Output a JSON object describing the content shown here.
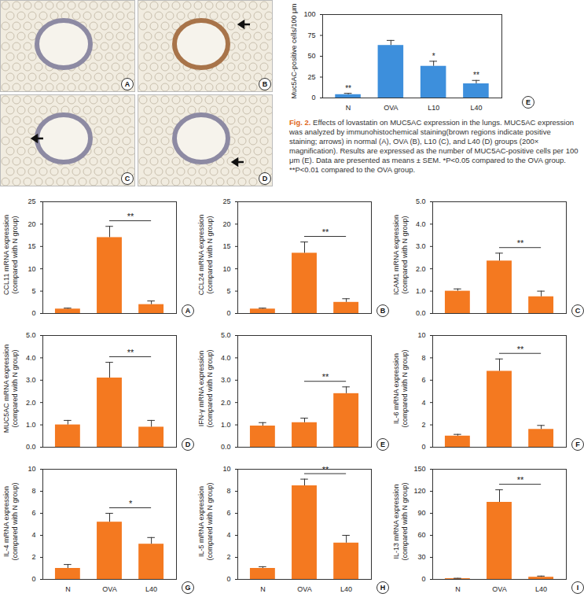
{
  "figure": {
    "images": [
      {
        "panel": "A"
      },
      {
        "panel": "B"
      },
      {
        "panel": "C"
      },
      {
        "panel": "D"
      }
    ],
    "caption": {
      "label": "Fig. 2.",
      "text": "Effects of lovastatin on MUC5AC expression in the lungs. MUC5AC expression was analyzed by immunohistochemical staining(brown regions indicate positive staining; arrows) in normal (A), OVA (B), L10 (C), and L40 (D) groups (200× magnification). Results are expressed as the number of MUC5AC-positive cells per 100 μm (E). Data are presented as means ± SEM. *P<0.05 compared to the OVA group. **P<0.01 compared to the OVA group."
    }
  },
  "chart_data": [
    {
      "type": "bar",
      "panel": "E",
      "ylabel": "Muc5AC-positive cells/100 μm",
      "categories": [
        "N",
        "OVA",
        "L10",
        "L40"
      ],
      "values": [
        4,
        63,
        38,
        17
      ],
      "errors": [
        1.5,
        6,
        6,
        4
      ],
      "significance": [
        "**",
        null,
        "*",
        "**"
      ],
      "color": "#3d8fdc",
      "ylim": [
        0,
        100
      ],
      "yticks": [
        0,
        25,
        50,
        75,
        100
      ]
    },
    {
      "type": "bar",
      "panel": "A",
      "ylabel": "CCL11 mRNA expression (compared with N group)",
      "categories": [
        null,
        null,
        null
      ],
      "tick_labels": "y",
      "values": [
        1,
        17,
        2
      ],
      "errors": [
        0.2,
        2.5,
        0.8
      ],
      "comparison": {
        "from": 1,
        "to": 2,
        "label": "**"
      },
      "color": "#f47920",
      "ylim": [
        0,
        25
      ],
      "yticks": [
        0,
        5,
        10,
        15,
        20,
        25
      ]
    },
    {
      "type": "bar",
      "panel": "B",
      "ylabel": "CCL24 mRNA expression (compared with N group)",
      "categories": [
        null,
        null,
        null
      ],
      "tick_labels": "y",
      "values": [
        1,
        13.5,
        2.5
      ],
      "errors": [
        0.2,
        2.5,
        0.8
      ],
      "comparison": {
        "from": 1,
        "to": 2,
        "label": "**"
      },
      "color": "#f47920",
      "ylim": [
        0,
        25
      ],
      "yticks": [
        0,
        5,
        10,
        15,
        20,
        25
      ]
    },
    {
      "type": "bar",
      "panel": "C",
      "ylabel": "ICAM1 mRNA expression (compared with N group)",
      "categories": [
        null,
        null,
        null
      ],
      "tick_labels": "y",
      "values": [
        1,
        2.35,
        0.75
      ],
      "errors": [
        0.1,
        0.35,
        0.25
      ],
      "comparison": {
        "from": 1,
        "to": 2,
        "label": "**"
      },
      "color": "#f47920",
      "ylim": [
        0,
        5
      ],
      "yticks": [
        0,
        1,
        2,
        3,
        4,
        5
      ]
    },
    {
      "type": "bar",
      "panel": "D",
      "ylabel": "MUC5AC mRNA expression (compared with N group)",
      "categories": [
        null,
        null,
        null
      ],
      "tick_labels": "y",
      "values": [
        1,
        3.1,
        0.9
      ],
      "errors": [
        0.2,
        0.7,
        0.3
      ],
      "comparison": {
        "from": 1,
        "to": 2,
        "label": "**"
      },
      "color": "#f47920",
      "ylim": [
        0,
        5
      ],
      "yticks": [
        0,
        1,
        2,
        3,
        4,
        5
      ]
    },
    {
      "type": "bar",
      "panel": "E",
      "ylabel": "IFN-γ mRNA expression (compared with N group)",
      "categories": [
        null,
        null,
        null
      ],
      "tick_labels": "y",
      "values": [
        0.95,
        1.1,
        2.4
      ],
      "errors": [
        0.15,
        0.2,
        0.3
      ],
      "comparison": {
        "from": 1,
        "to": 2,
        "label": "**"
      },
      "color": "#f47920",
      "ylim": [
        0,
        5
      ],
      "yticks": [
        0,
        1,
        2,
        3,
        4,
        5
      ]
    },
    {
      "type": "bar",
      "panel": "F",
      "ylabel": "IL-6 mRNA expression (compared with N group)",
      "categories": [
        null,
        null,
        null
      ],
      "tick_labels": "y",
      "values": [
        1,
        6.8,
        1.6
      ],
      "errors": [
        0.15,
        1.1,
        0.35
      ],
      "comparison": {
        "from": 1,
        "to": 2,
        "label": "**"
      },
      "color": "#f47920",
      "ylim": [
        0,
        10
      ],
      "yticks": [
        0,
        2,
        4,
        6,
        8,
        10
      ]
    },
    {
      "type": "bar",
      "panel": "G",
      "ylabel": "IL-4 mRNA expression (compared with N group)",
      "categories": [
        "N",
        "OVA",
        "L40"
      ],
      "values": [
        1,
        5.2,
        3.2
      ],
      "errors": [
        0.35,
        0.8,
        0.6
      ],
      "comparison": {
        "from": 1,
        "to": 2,
        "label": "*"
      },
      "color": "#f47920",
      "ylim": [
        0,
        10
      ],
      "yticks": [
        0,
        2,
        4,
        6,
        8,
        10
      ]
    },
    {
      "type": "bar",
      "panel": "H",
      "ylabel": "IL-5 mRNA expression (compared with N group)",
      "categories": [
        "N",
        "OVA",
        "L40"
      ],
      "values": [
        1,
        8.5,
        3.3
      ],
      "errors": [
        0.15,
        0.6,
        0.7
      ],
      "comparison": {
        "from": 1,
        "to": 2,
        "label": "**"
      },
      "color": "#f47920",
      "ylim": [
        0,
        10
      ],
      "yticks": [
        0,
        2,
        4,
        6,
        8,
        10
      ]
    },
    {
      "type": "bar",
      "panel": "I",
      "ylabel": "IL-13 mRNA expression (compared with N group)",
      "categories": [
        "N",
        "OVA",
        "L40"
      ],
      "values": [
        1,
        105,
        3
      ],
      "errors": [
        0.5,
        17,
        1.5
      ],
      "comparison": {
        "from": 1,
        "to": 2,
        "label": "**"
      },
      "color": "#f47920",
      "ylim": [
        0,
        150
      ],
      "yticks": [
        0,
        30,
        60,
        90,
        120,
        150
      ]
    }
  ]
}
